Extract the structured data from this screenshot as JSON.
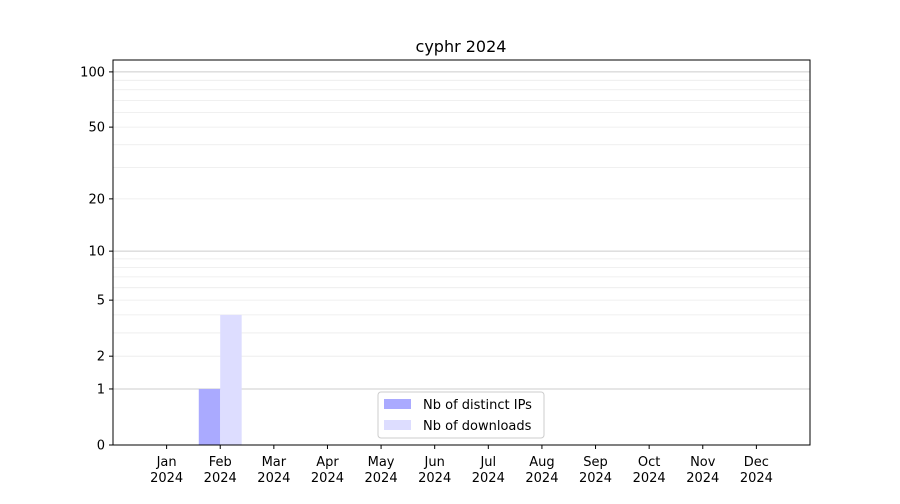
{
  "chart_data": {
    "type": "bar",
    "title": "cyphr 2024",
    "xlabel": "",
    "ylabel": "",
    "y_scale": "log(1+y)",
    "grid": true,
    "legend_position": "lower center",
    "categories": [
      [
        "Jan",
        "2024"
      ],
      [
        "Feb",
        "2024"
      ],
      [
        "Mar",
        "2024"
      ],
      [
        "Apr",
        "2024"
      ],
      [
        "May",
        "2024"
      ],
      [
        "Jun",
        "2024"
      ],
      [
        "Jul",
        "2024"
      ],
      [
        "Aug",
        "2024"
      ],
      [
        "Sep",
        "2024"
      ],
      [
        "Oct",
        "2024"
      ],
      [
        "Nov",
        "2024"
      ],
      [
        "Dec",
        "2024"
      ]
    ],
    "y_ticks": [
      0,
      1,
      2,
      5,
      10,
      20,
      50,
      100
    ],
    "ylim": [
      0,
      116
    ],
    "series": [
      {
        "name": "Nb of distinct IPs",
        "color": "#aaaaff",
        "values": [
          0,
          1,
          0,
          0,
          0,
          0,
          0,
          0,
          0,
          0,
          0,
          0
        ]
      },
      {
        "name": "Nb of downloads",
        "color": "#ddddff",
        "values": [
          0,
          4,
          0,
          0,
          0,
          0,
          0,
          0,
          0,
          0,
          0,
          0
        ]
      }
    ]
  }
}
